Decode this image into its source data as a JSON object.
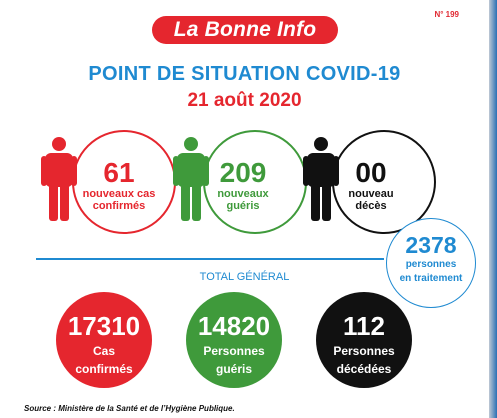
{
  "issue_number": "N° 199",
  "brand": "La Bonne Info",
  "title": "POINT DE SITUATION COVID-19",
  "date": "21 août 2020",
  "daily": [
    {
      "value": "61",
      "line1": "nouveaux cas",
      "line2": "confirmés",
      "color": "#e5262e"
    },
    {
      "value": "209",
      "line1": "nouveaux",
      "line2": "guéris",
      "color": "#3f9a3b"
    },
    {
      "value": "00",
      "line1": "nouveau",
      "line2": "décès",
      "color": "#111111"
    }
  ],
  "treatment": {
    "value": "2378",
    "line1": "personnes",
    "line2": "en traitement"
  },
  "total_label": "TOTAL GÉNÉRAL",
  "totals": [
    {
      "value": "17310",
      "line1": "Cas",
      "line2": "confirmés",
      "color": "#e5262e"
    },
    {
      "value": "14820",
      "line1": "Personnes",
      "line2": "guéris",
      "color": "#3f9a3b"
    },
    {
      "value": "112",
      "line1": "Personnes",
      "line2": "décédées",
      "color": "#111111"
    }
  ],
  "source": "Source : Ministère de la Santé et de l’Hygiène Publique."
}
